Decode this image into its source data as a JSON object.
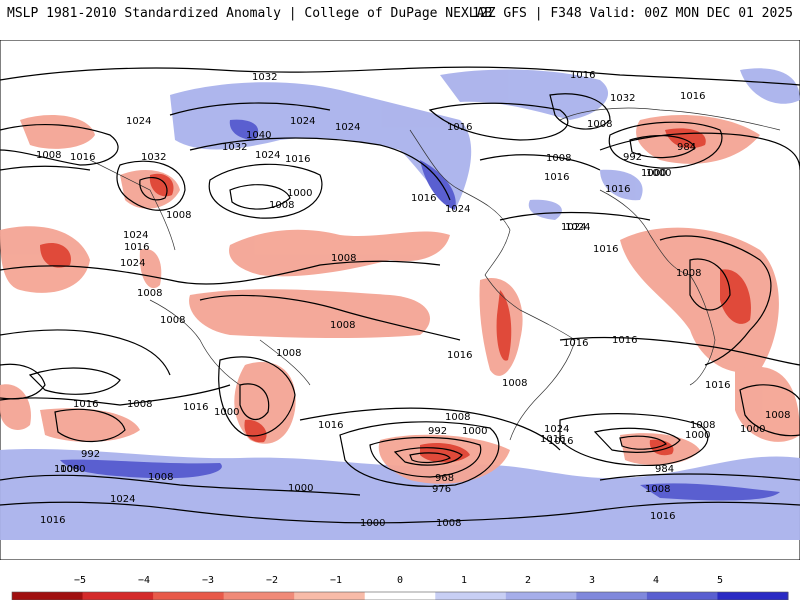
{
  "header": {
    "left_title": "MSLP 1981-2010 Standardized Anomaly | College of DuPage NEXLAB",
    "right_title": "12Z GFS | F348 Valid: 00Z MON DEC 01 2025"
  },
  "colorbar": {
    "ticks": [
      "−5",
      "−4",
      "−3",
      "−2",
      "−1",
      "0",
      "1",
      "2",
      "3",
      "4",
      "5"
    ],
    "colors": [
      "#a01010",
      "#d42a2a",
      "#e85a4a",
      "#f08a78",
      "#f8bba8",
      "#ffffff",
      "#c8cff4",
      "#a6aeea",
      "#8088dc",
      "#5a5fd0",
      "#2a2ac4"
    ]
  },
  "isobar_labels": [
    "1032",
    "1024",
    "1016",
    "1024",
    "1008",
    "1016",
    "1032",
    "1024",
    "1040",
    "1032",
    "1024",
    "1016",
    "1016",
    "1032",
    "1016",
    "1008",
    "1000",
    "1008",
    "1008",
    "1024",
    "1016",
    "1016",
    "1016",
    "1024",
    "1008",
    "1024",
    "1016",
    "1024",
    "1008",
    "1008",
    "1000",
    "1008",
    "992",
    "1000",
    "984",
    "1016",
    "1024",
    "1016",
    "1008",
    "1008",
    "1016",
    "1008",
    "1016",
    "1016",
    "1000",
    "1016",
    "1008",
    "1016",
    "992",
    "1000",
    "1016",
    "1000",
    "1000",
    "1008",
    "992",
    "968",
    "976",
    "1000",
    "1008",
    "1024",
    "1016",
    "1016",
    "1008",
    "1008",
    "1000",
    "984",
    "1008",
    "1008",
    "1008",
    "1024",
    "1016",
    "1000",
    "1008",
    "1016"
  ]
}
